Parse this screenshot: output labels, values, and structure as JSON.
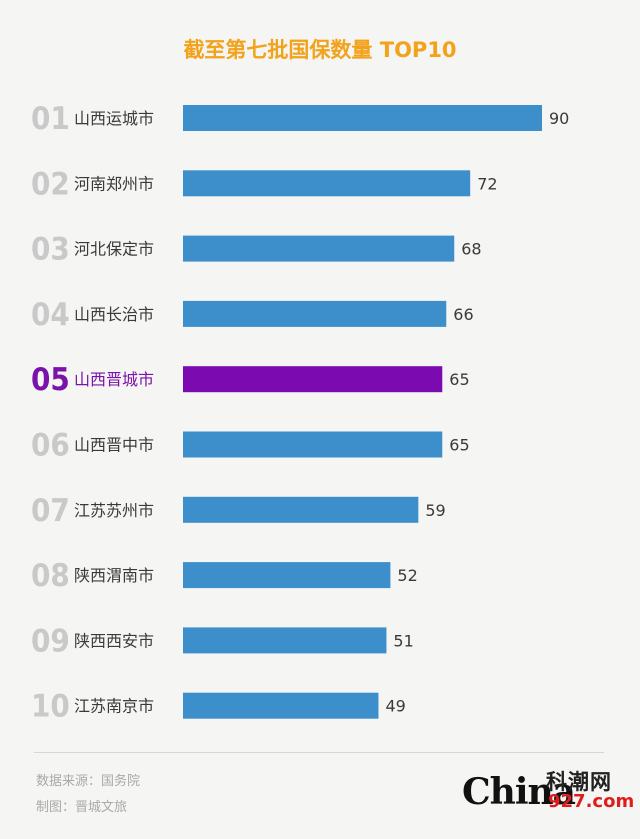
{
  "chart_data": {
    "type": "bar",
    "orientation": "horizontal",
    "title": "截至第七批国保数量 TOP10",
    "ranks": [
      "01",
      "02",
      "03",
      "04",
      "05",
      "06",
      "07",
      "08",
      "09",
      "10"
    ],
    "categories": [
      "山西运城市",
      "河南郑州市",
      "河北保定市",
      "山西长治市",
      "山西晋城市",
      "山西晋中市",
      "江苏苏州市",
      "陕西渭南市",
      "陕西西安市",
      "江苏南京市"
    ],
    "values": [
      90,
      72,
      68,
      66,
      65,
      65,
      59,
      52,
      51,
      49
    ],
    "highlight_index": 4,
    "xlim": [
      0,
      90
    ],
    "colors": {
      "bar": "#3d8fcc",
      "highlight": "#7b0ab0",
      "title": "#f2a21b"
    }
  },
  "footer": {
    "source": "数据来源：国务院",
    "maker": "制图：晋城文旅"
  },
  "logo": {
    "china": "China",
    "cn": "科潮网",
    "num": "927.com"
  }
}
